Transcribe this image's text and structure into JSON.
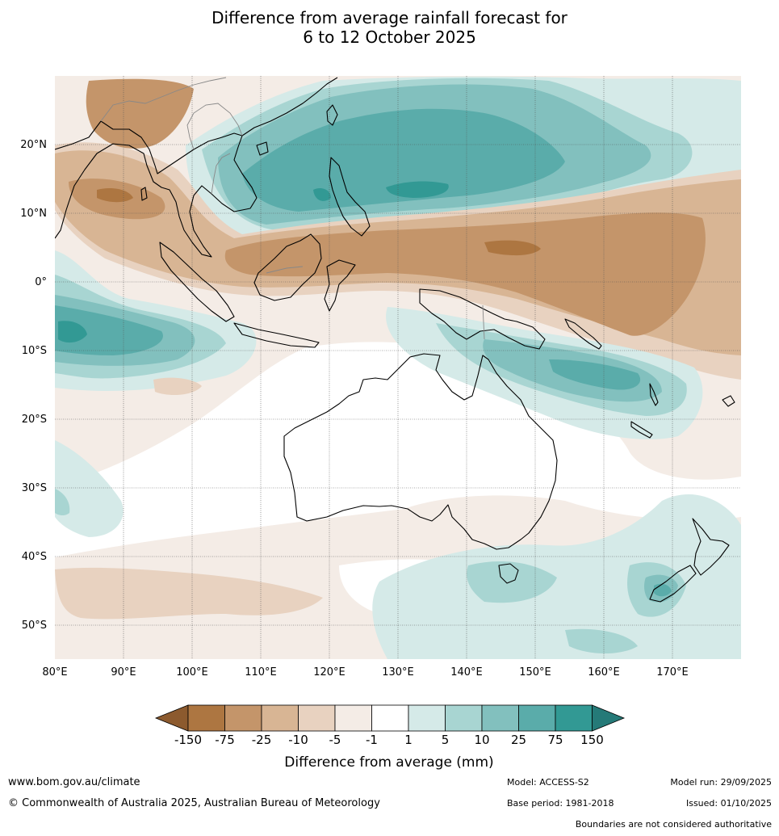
{
  "title_line1": "Difference from average rainfall forecast for",
  "title_line2": "6 to 12 October 2025",
  "lon_labels": [
    "80°E",
    "90°E",
    "100°E",
    "110°E",
    "120°E",
    "130°E",
    "140°E",
    "150°E",
    "160°E",
    "170°E"
  ],
  "lat_labels": [
    "20°N",
    "10°N",
    "0°",
    "10°S",
    "20°S",
    "30°S",
    "40°S",
    "50°S"
  ],
  "colorbar": {
    "ticks": [
      "-150",
      "-75",
      "-25",
      "-10",
      "-5",
      "-1",
      "1",
      "5",
      "10",
      "25",
      "75",
      "150"
    ],
    "colors": [
      "#8c5a2e",
      "#ad7641",
      "#c4956a",
      "#d8b594",
      "#e8d2c0",
      "#f4ece6",
      "#ffffff",
      "#d5eae8",
      "#a8d5d2",
      "#82c0be",
      "#5aacaa",
      "#329994",
      "#257a78"
    ],
    "title": "Difference from average (mm)"
  },
  "footer": {
    "url": "www.bom.gov.au/climate",
    "copyright": "© Commonwealth of Australia 2025, Australian Bureau of Meteorology",
    "model": "Model: ACCESS-S2",
    "base_period": "Base period: 1981-2018",
    "model_run": "Model run: 29/09/2025",
    "issued": "Issued: 01/10/2025",
    "disclaimer": "Boundaries are not considered authoritative"
  }
}
